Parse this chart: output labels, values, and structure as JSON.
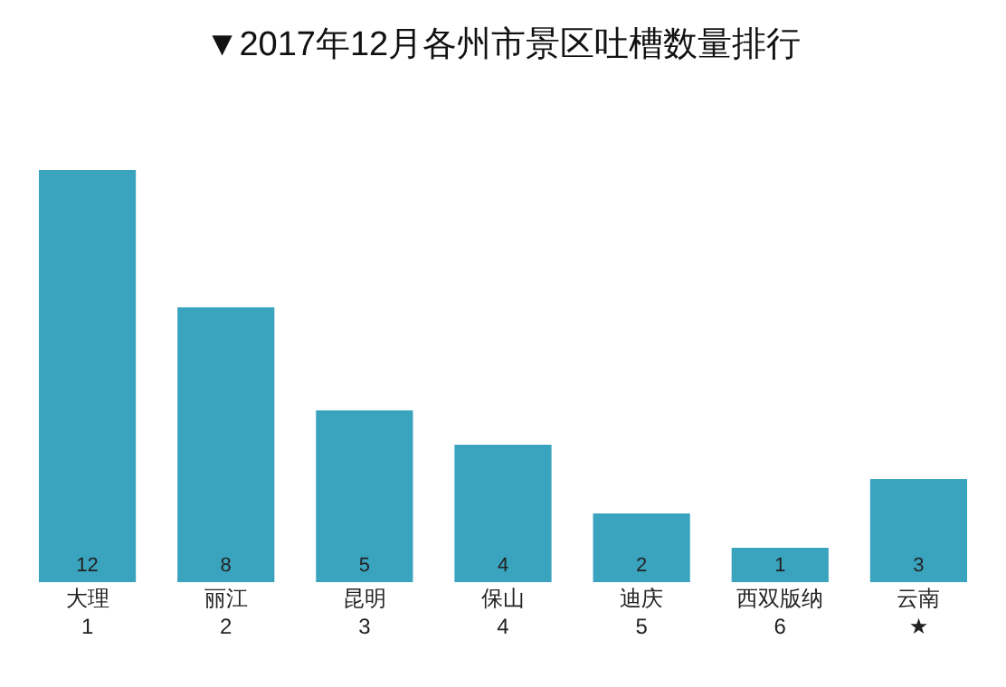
{
  "chart_data": {
    "type": "bar",
    "title": "▼2017年12月各州市景区吐槽数量排行",
    "categories": [
      "大理\n1",
      "丽江\n2",
      "昆明\n3",
      "保山\n4",
      "迪庆\n5",
      "西双版纳\n6",
      "云南\n★"
    ],
    "values": [
      12,
      8,
      5,
      4,
      2,
      1,
      3
    ],
    "color": "#3aa3be",
    "data_labels": true,
    "grid": false,
    "legend": false
  }
}
